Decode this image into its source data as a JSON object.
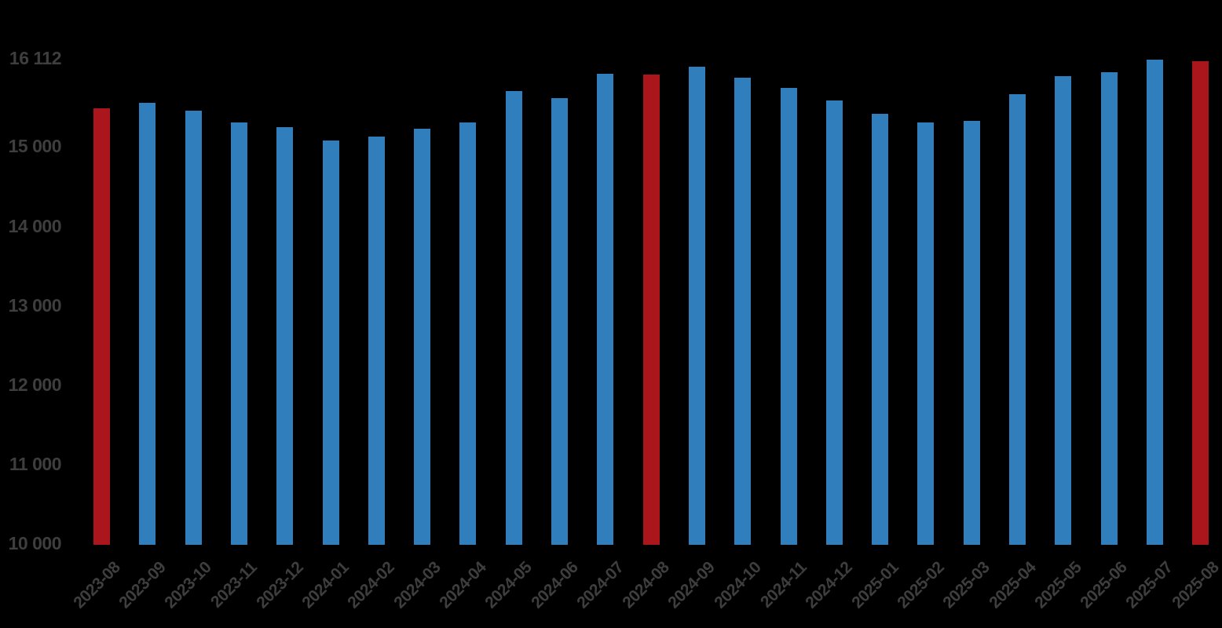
{
  "chart_data": {
    "type": "bar",
    "title": "",
    "xlabel": "",
    "ylabel": "",
    "categories": [
      "2023-08",
      "2023-09",
      "2023-10",
      "2023-11",
      "2023-12",
      "2024-01",
      "2024-02",
      "2024-03",
      "2024-04",
      "2024-05",
      "2024-06",
      "2024-07",
      "2024-08",
      "2024-09",
      "2024-10",
      "2024-11",
      "2024-12",
      "2025-01",
      "2025-02",
      "2025-03",
      "2025-04",
      "2025-05",
      "2025-06",
      "2025-07",
      "2025-08"
    ],
    "values": [
      15500,
      15570,
      15470,
      15320,
      15260,
      15090,
      15140,
      15240,
      15320,
      15720,
      15630,
      15930,
      15920,
      16020,
      15880,
      15760,
      15600,
      15430,
      15320,
      15340,
      15680,
      15900,
      15950,
      16112,
      16090
    ],
    "highlighted_categories": [
      "2023-08",
      "2024-08",
      "2025-08"
    ],
    "y_axis_ticks": [
      {
        "value": 16112,
        "label": "16 112"
      },
      {
        "value": 15000,
        "label": "15 000"
      },
      {
        "value": 14000,
        "label": "14 000"
      },
      {
        "value": 13000,
        "label": "13 000"
      },
      {
        "value": 12000,
        "label": "12 000"
      },
      {
        "value": 11000,
        "label": "11 000"
      },
      {
        "value": 10000,
        "label": "10 000"
      }
    ],
    "ylim": [
      10000,
      16112
    ],
    "x_tick_rotation_deg": -45,
    "grid": false,
    "legend": null,
    "colors": {
      "bar": "#317ebc",
      "highlight": "#aa161b",
      "label_text": "#3e3e3e",
      "background": "#000000"
    }
  }
}
